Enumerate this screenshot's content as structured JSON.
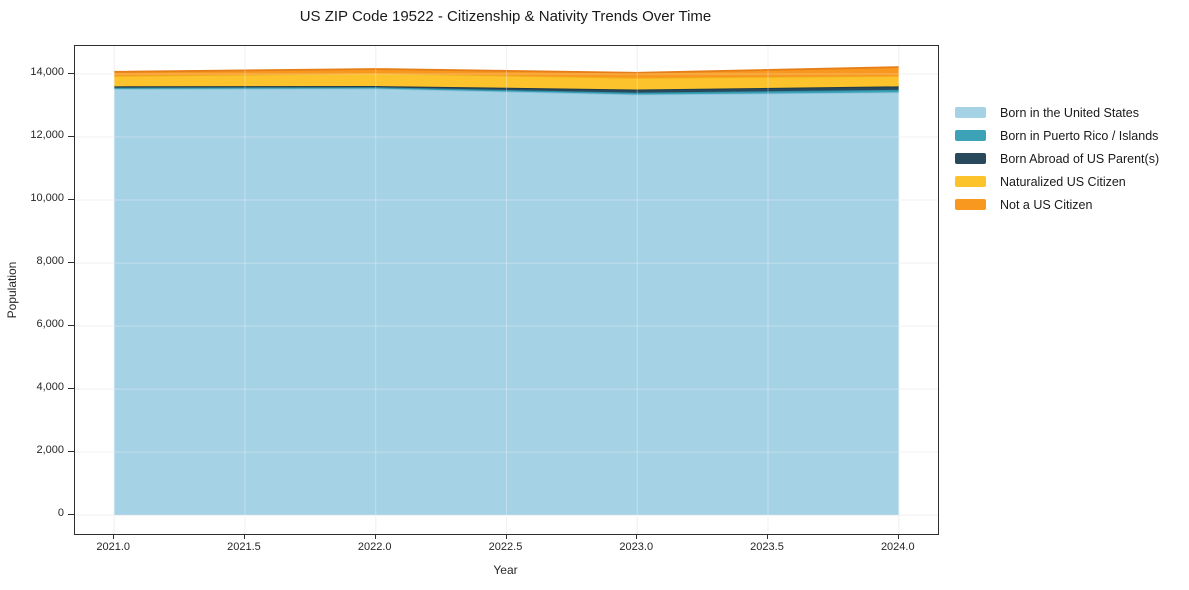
{
  "chart_data": {
    "type": "area",
    "stacked": true,
    "title": "US ZIP Code 19522 - Citizenship & Nativity Trends Over Time",
    "xlabel": "Year",
    "ylabel": "Population",
    "x": [
      2021,
      2022,
      2023,
      2024
    ],
    "series": [
      {
        "name": "Born in the United States",
        "color": "#a6d2e5",
        "edge": "#8cc2da",
        "values": [
          13530,
          13540,
          13350,
          13420
        ]
      },
      {
        "name": "Born in Puerto Rico / Islands",
        "color": "#3ba2b8",
        "edge": "#2f8fa5",
        "values": [
          40,
          40,
          60,
          80
        ]
      },
      {
        "name": "Born Abroad of US Parent(s)",
        "color": "#28485c",
        "edge": "#1f3a4b",
        "values": [
          40,
          40,
          100,
          110
        ]
      },
      {
        "name": "Naturalized US Citizen",
        "color": "#fcc32d",
        "edge": "#f2ae1d",
        "values": [
          330,
          400,
          370,
          330
        ]
      },
      {
        "name": "Not a US Citizen",
        "color": "#f8981f",
        "edge": "#e67f17",
        "values": [
          130,
          140,
          160,
          280
        ]
      }
    ],
    "xlim": [
      2020.85,
      2024.15
    ],
    "ylim": [
      -600,
      14890
    ],
    "xticks": {
      "values": [
        2021.0,
        2021.5,
        2022.0,
        2022.5,
        2023.0,
        2023.5,
        2024.0
      ],
      "labels": [
        "2021.0",
        "2021.5",
        "2022.0",
        "2022.5",
        "2023.0",
        "2023.5",
        "2024.0"
      ]
    },
    "yticks": {
      "values": [
        0,
        2000,
        4000,
        6000,
        8000,
        10000,
        12000,
        14000
      ],
      "labels": [
        "0",
        "2,000",
        "4,000",
        "6,000",
        "8,000",
        "10,000",
        "12,000",
        "14,000"
      ]
    },
    "grid": true,
    "grid_color": "#ebebeb",
    "legend_position": "right-outside"
  }
}
